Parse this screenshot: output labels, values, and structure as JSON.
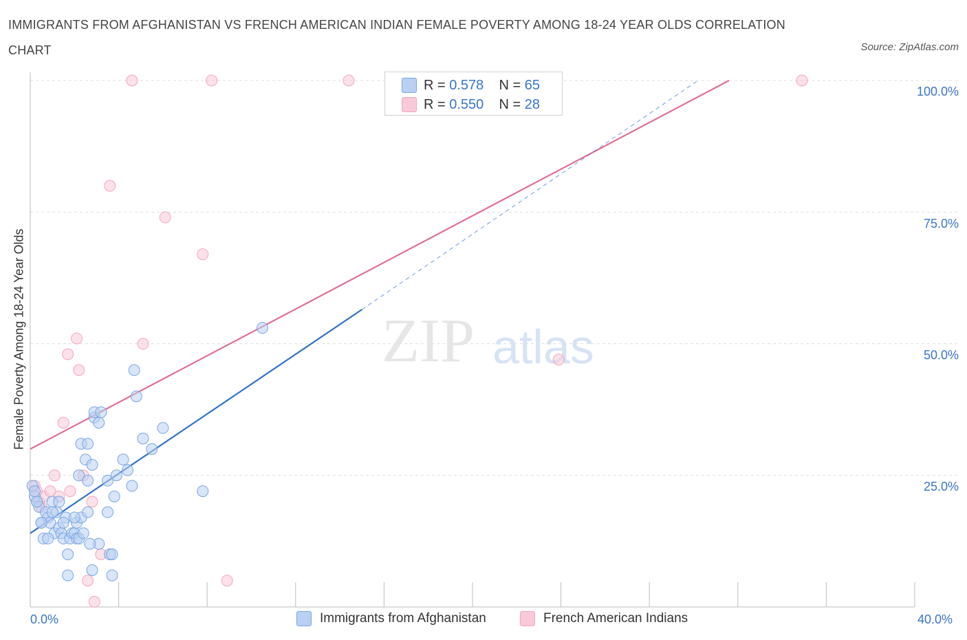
{
  "title": "IMMIGRANTS FROM AFGHANISTAN VS FRENCH AMERICAN INDIAN FEMALE POVERTY AMONG 18-24 YEAR OLDS CORRELATION CHART",
  "source": "Source: ZipAtlas.com",
  "watermark": {
    "zip": "ZIP",
    "atlas": "atlas"
  },
  "legend": {
    "rows": [
      {
        "r_label": "R = ",
        "r_value": "0.578",
        "n_label": "N = ",
        "n_value": "65"
      },
      {
        "r_label": "R = ",
        "r_value": "0.550",
        "n_label": "N = ",
        "n_value": "28"
      }
    ]
  },
  "chart_data": {
    "type": "scatter",
    "title": "IMMIGRANTS FROM AFGHANISTAN VS FRENCH AMERICAN INDIAN FEMALE POVERTY AMONG 18-24 YEAR OLDS CORRELATION CHART",
    "xlabel": "",
    "ylabel": "Female Poverty Among 18-24 Year Olds",
    "xlim": [
      0,
      40
    ],
    "ylim": [
      0,
      100
    ],
    "x_tick_labels": [
      "0.0%",
      "40.0%"
    ],
    "y_tick_labels": [
      "100.0%",
      "75.0%",
      "50.0%",
      "25.0%"
    ],
    "y_ticks": [
      100,
      75,
      50,
      25
    ],
    "grid": "horizontal dashed",
    "series": [
      {
        "name": "Immigrants from Afghanistan",
        "color": "#7aa6e0",
        "line_color": "#2f6fcb",
        "r": 0.578,
        "n": 65,
        "trend": {
          "x0": 0,
          "y0": 14,
          "x1": 15,
          "y1": 56.5
        },
        "trend_extension": {
          "x0": 15,
          "y0": 56.5,
          "x1": 30.2,
          "y1": 100
        },
        "points": [
          [
            0.1,
            23
          ],
          [
            0.2,
            21
          ],
          [
            0.3,
            20
          ],
          [
            0.4,
            19
          ],
          [
            0.5,
            16
          ],
          [
            0.6,
            13
          ],
          [
            0.7,
            18
          ],
          [
            0.8,
            17
          ],
          [
            0.9,
            16
          ],
          [
            1.0,
            20
          ],
          [
            1.1,
            14
          ],
          [
            1.2,
            18
          ],
          [
            1.3,
            20
          ],
          [
            1.3,
            15
          ],
          [
            1.4,
            14
          ],
          [
            1.5,
            13
          ],
          [
            1.6,
            17
          ],
          [
            1.7,
            10
          ],
          [
            1.8,
            13
          ],
          [
            1.9,
            14
          ],
          [
            1.7,
            6
          ],
          [
            2.0,
            14
          ],
          [
            2.1,
            13
          ],
          [
            2.2,
            13
          ],
          [
            2.1,
            16
          ],
          [
            2.2,
            25
          ],
          [
            2.3,
            17
          ],
          [
            2.3,
            31
          ],
          [
            2.4,
            14
          ],
          [
            2.5,
            28
          ],
          [
            2.6,
            24
          ],
          [
            2.6,
            31
          ],
          [
            2.6,
            18
          ],
          [
            2.8,
            27
          ],
          [
            2.8,
            7
          ],
          [
            2.9,
            36
          ],
          [
            2.9,
            37
          ],
          [
            3.1,
            35
          ],
          [
            3.1,
            12
          ],
          [
            3.2,
            37
          ],
          [
            3.5,
            24
          ],
          [
            3.5,
            18
          ],
          [
            3.6,
            10
          ],
          [
            3.7,
            6
          ],
          [
            3.7,
            10
          ],
          [
            3.8,
            21
          ],
          [
            3.9,
            25
          ],
          [
            4.2,
            28
          ],
          [
            4.4,
            26
          ],
          [
            4.6,
            23
          ],
          [
            4.7,
            45
          ],
          [
            4.8,
            40
          ],
          [
            5.1,
            32
          ],
          [
            5.5,
            30
          ],
          [
            6.0,
            34
          ],
          [
            7.8,
            22
          ],
          [
            10.5,
            53
          ],
          [
            0.3,
            20
          ],
          [
            0.5,
            16
          ],
          [
            0.8,
            13
          ],
          [
            1.5,
            16
          ],
          [
            2.0,
            17
          ],
          [
            0.2,
            22
          ],
          [
            1.0,
            18
          ],
          [
            2.7,
            12
          ]
        ]
      },
      {
        "name": "French American Indians",
        "color": "#f2a7bf",
        "line_color": "#e06e96",
        "r": 0.55,
        "n": 28,
        "trend": {
          "x0": 0,
          "y0": 30,
          "x1": 31.6,
          "y1": 100
        },
        "points": [
          [
            0.2,
            23
          ],
          [
            0.4,
            20
          ],
          [
            0.5,
            19
          ],
          [
            0.6,
            21
          ],
          [
            0.9,
            22
          ],
          [
            1.1,
            25
          ],
          [
            1.3,
            21
          ],
          [
            1.5,
            35
          ],
          [
            1.7,
            48
          ],
          [
            1.8,
            22
          ],
          [
            2.1,
            51
          ],
          [
            2.2,
            45
          ],
          [
            2.4,
            25
          ],
          [
            2.6,
            5
          ],
          [
            2.8,
            20
          ],
          [
            2.9,
            1
          ],
          [
            3.2,
            10
          ],
          [
            3.6,
            80
          ],
          [
            4.6,
            100
          ],
          [
            5.1,
            50
          ],
          [
            6.1,
            74
          ],
          [
            7.8,
            67
          ],
          [
            8.2,
            100
          ],
          [
            8.9,
            5
          ],
          [
            14.4,
            100
          ],
          [
            23.9,
            47
          ],
          [
            34.9,
            100
          ],
          [
            0.3,
            22
          ]
        ]
      }
    ]
  },
  "bottom_legend": [
    "Immigrants from Afghanistan",
    "French American Indians"
  ],
  "colors": {
    "blue_fill": "#b9d0f2",
    "blue_stroke": "#7aa6e0",
    "pink_fill": "#f8c9d8",
    "pink_stroke": "#f2a7bf",
    "tick_text": "#3a74c8"
  }
}
